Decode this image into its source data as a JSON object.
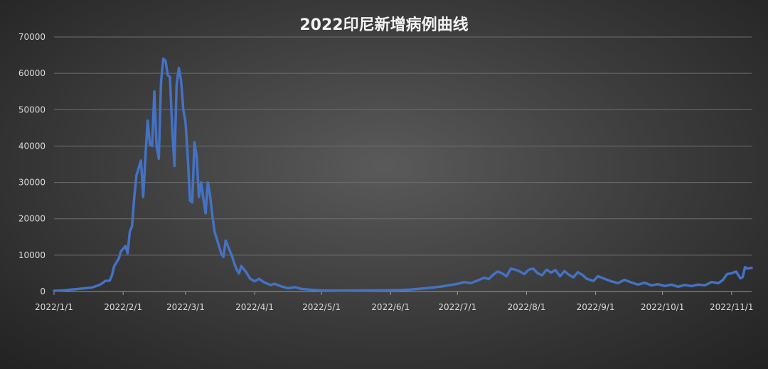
{
  "chart_data": {
    "type": "line",
    "title": "2022印尼新增病例曲线",
    "xlabel": "",
    "ylabel": "",
    "ylim": [
      0,
      70000
    ],
    "y_ticks": [
      "0",
      "10000",
      "20000",
      "30000",
      "40000",
      "50000",
      "60000",
      "70000"
    ],
    "x_ticks": [
      {
        "label": "2022/1/1",
        "date": "2022-01-01"
      },
      {
        "label": "2022/2/1",
        "date": "2022-02-01"
      },
      {
        "label": "2022/3/1",
        "date": "2022-03-01"
      },
      {
        "label": "2022/4/1",
        "date": "2022-04-01"
      },
      {
        "label": "2022/5/1",
        "date": "2022-05-01"
      },
      {
        "label": "2022/6/1",
        "date": "2022-06-01"
      },
      {
        "label": "2022/7/1",
        "date": "2022-07-01"
      },
      {
        "label": "2022/8/1",
        "date": "2022-08-01"
      },
      {
        "label": "2022/9/1",
        "date": "2022-09-01"
      },
      {
        "label": "2022/10/1",
        "date": "2022-10-01"
      },
      {
        "label": "2022/11/1",
        "date": "2022-11-01"
      }
    ],
    "x_range": [
      "2022-01-01",
      "2022-11-10"
    ],
    "grid": true,
    "legend": "none",
    "series": [
      {
        "color": "#4472c4",
        "points": [
          [
            "2022-01-01",
            200
          ],
          [
            "2022-01-05",
            300
          ],
          [
            "2022-01-08",
            500
          ],
          [
            "2022-01-12",
            700
          ],
          [
            "2022-01-15",
            900
          ],
          [
            "2022-01-18",
            1100
          ],
          [
            "2022-01-20",
            1500
          ],
          [
            "2022-01-22",
            2000
          ],
          [
            "2022-01-24",
            2900
          ],
          [
            "2022-01-26",
            3000
          ],
          [
            "2022-01-27",
            4500
          ],
          [
            "2022-01-28",
            7000
          ],
          [
            "2022-01-29",
            8000
          ],
          [
            "2022-01-30",
            9000
          ],
          [
            "2022-01-31",
            11000
          ],
          [
            "2022-02-02",
            12500
          ],
          [
            "2022-02-03",
            10500
          ],
          [
            "2022-02-04",
            16500
          ],
          [
            "2022-02-05",
            18000
          ],
          [
            "2022-02-06",
            26000
          ],
          [
            "2022-02-07",
            32000
          ],
          [
            "2022-02-08",
            34000
          ],
          [
            "2022-02-09",
            36000
          ],
          [
            "2022-02-10",
            26000
          ],
          [
            "2022-02-11",
            37000
          ],
          [
            "2022-02-12",
            47000
          ],
          [
            "2022-02-13",
            40500
          ],
          [
            "2022-02-14",
            40000
          ],
          [
            "2022-02-15",
            55000
          ],
          [
            "2022-02-16",
            40000
          ],
          [
            "2022-02-17",
            36500
          ],
          [
            "2022-02-18",
            57500
          ],
          [
            "2022-02-19",
            64000
          ],
          [
            "2022-02-20",
            63500
          ],
          [
            "2022-02-21",
            59500
          ],
          [
            "2022-02-22",
            59000
          ],
          [
            "2022-02-23",
            45000
          ],
          [
            "2022-02-24",
            34500
          ],
          [
            "2022-02-25",
            57000
          ],
          [
            "2022-02-26",
            61500
          ],
          [
            "2022-02-27",
            58000
          ],
          [
            "2022-02-28",
            50000
          ],
          [
            "2022-03-01",
            46500
          ],
          [
            "2022-03-02",
            37000
          ],
          [
            "2022-03-03",
            25000
          ],
          [
            "2022-03-04",
            24500
          ],
          [
            "2022-03-05",
            41000
          ],
          [
            "2022-03-06",
            37000
          ],
          [
            "2022-03-07",
            26000
          ],
          [
            "2022-03-08",
            30000
          ],
          [
            "2022-03-09",
            25500
          ],
          [
            "2022-03-10",
            21500
          ],
          [
            "2022-03-11",
            30000
          ],
          [
            "2022-03-12",
            26500
          ],
          [
            "2022-03-13",
            21000
          ],
          [
            "2022-03-14",
            16500
          ],
          [
            "2022-03-15",
            14500
          ],
          [
            "2022-03-16",
            12500
          ],
          [
            "2022-03-17",
            10500
          ],
          [
            "2022-03-18",
            9500
          ],
          [
            "2022-03-19",
            14000
          ],
          [
            "2022-03-20",
            12500
          ],
          [
            "2022-03-22",
            9500
          ],
          [
            "2022-03-23",
            7500
          ],
          [
            "2022-03-24",
            6000
          ],
          [
            "2022-03-25",
            5000
          ],
          [
            "2022-03-26",
            7000
          ],
          [
            "2022-03-28",
            5500
          ],
          [
            "2022-03-30",
            3500
          ],
          [
            "2022-04-01",
            2800
          ],
          [
            "2022-04-03",
            3500
          ],
          [
            "2022-04-05",
            2600
          ],
          [
            "2022-04-08",
            1800
          ],
          [
            "2022-04-10",
            2100
          ],
          [
            "2022-04-13",
            1400
          ],
          [
            "2022-04-16",
            900
          ],
          [
            "2022-04-19",
            1200
          ],
          [
            "2022-04-22",
            700
          ],
          [
            "2022-04-26",
            500
          ],
          [
            "2022-05-01",
            300
          ],
          [
            "2022-05-10",
            250
          ],
          [
            "2022-05-20",
            300
          ],
          [
            "2022-05-31",
            350
          ],
          [
            "2022-06-05",
            400
          ],
          [
            "2022-06-10",
            550
          ],
          [
            "2022-06-15",
            800
          ],
          [
            "2022-06-20",
            1100
          ],
          [
            "2022-06-24",
            1400
          ],
          [
            "2022-06-28",
            1800
          ],
          [
            "2022-07-01",
            2100
          ],
          [
            "2022-07-04",
            2600
          ],
          [
            "2022-07-07",
            2300
          ],
          [
            "2022-07-10",
            3000
          ],
          [
            "2022-07-13",
            3800
          ],
          [
            "2022-07-15",
            3400
          ],
          [
            "2022-07-17",
            4600
          ],
          [
            "2022-07-19",
            5500
          ],
          [
            "2022-07-21",
            5000
          ],
          [
            "2022-07-23",
            4200
          ],
          [
            "2022-07-25",
            6300
          ],
          [
            "2022-07-27",
            6000
          ],
          [
            "2022-07-29",
            5500
          ],
          [
            "2022-07-31",
            4800
          ],
          [
            "2022-08-02",
            6000
          ],
          [
            "2022-08-04",
            6300
          ],
          [
            "2022-08-06",
            5000
          ],
          [
            "2022-08-08",
            4500
          ],
          [
            "2022-08-10",
            6000
          ],
          [
            "2022-08-12",
            5200
          ],
          [
            "2022-08-14",
            5900
          ],
          [
            "2022-08-16",
            4200
          ],
          [
            "2022-08-18",
            5600
          ],
          [
            "2022-08-20",
            4600
          ],
          [
            "2022-08-22",
            3900
          ],
          [
            "2022-08-24",
            5300
          ],
          [
            "2022-08-26",
            4600
          ],
          [
            "2022-08-28",
            3500
          ],
          [
            "2022-08-31",
            2900
          ],
          [
            "2022-09-02",
            4200
          ],
          [
            "2022-09-05",
            3500
          ],
          [
            "2022-09-08",
            2800
          ],
          [
            "2022-09-11",
            2300
          ],
          [
            "2022-09-14",
            3200
          ],
          [
            "2022-09-17",
            2500
          ],
          [
            "2022-09-20",
            1900
          ],
          [
            "2022-09-23",
            2400
          ],
          [
            "2022-09-26",
            1700
          ],
          [
            "2022-09-29",
            2000
          ],
          [
            "2022-10-02",
            1500
          ],
          [
            "2022-10-05",
            1900
          ],
          [
            "2022-10-08",
            1300
          ],
          [
            "2022-10-11",
            1800
          ],
          [
            "2022-10-14",
            1500
          ],
          [
            "2022-10-17",
            1900
          ],
          [
            "2022-10-20",
            1700
          ],
          [
            "2022-10-23",
            2600
          ],
          [
            "2022-10-26",
            2300
          ],
          [
            "2022-10-28",
            3100
          ],
          [
            "2022-10-30",
            4800
          ],
          [
            "2022-11-01",
            5000
          ],
          [
            "2022-11-03",
            5500
          ],
          [
            "2022-11-05",
            3600
          ],
          [
            "2022-11-06",
            4000
          ],
          [
            "2022-11-07",
            6700
          ],
          [
            "2022-11-08",
            6300
          ],
          [
            "2022-11-10",
            6500
          ]
        ]
      }
    ]
  }
}
